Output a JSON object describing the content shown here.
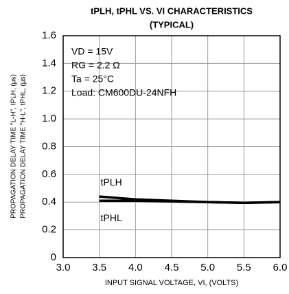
{
  "chart_data": {
    "type": "line",
    "title": "tPLH, tPHL VS. VI CHARACTERISTICS",
    "subtitle": "(TYPICAL)",
    "xlabel": "INPUT SIGNAL VOLTAGE, VI, (VOLTS)",
    "ylabel": [
      "PROPAGATION DELAY TIME \"L-H\", tPLH, (μs)",
      "PROPAGATION DELAY TIME \"H-L\", tPHL, (μs)"
    ],
    "annotations": [
      "VD = 15V",
      "RG = 2.2 Ω",
      "Ta = 25°C",
      "Load: CM600DU-24NFH"
    ],
    "x": [
      3.5,
      4.0,
      4.5,
      5.0,
      5.5,
      6.0
    ],
    "series": [
      {
        "name": "tPLH",
        "color": "#000000",
        "values": [
          0.44,
          0.42,
          0.41,
          0.4,
          0.395,
          0.4
        ]
      },
      {
        "name": "tPHL",
        "color": "#000000",
        "values": [
          0.41,
          0.41,
          0.405,
          0.4,
          0.395,
          0.4
        ]
      }
    ],
    "xlim": [
      3,
      6
    ],
    "xticks": [
      {
        "value": 3,
        "label": "3.0"
      },
      {
        "value": 3.5,
        "label": "3.5"
      },
      {
        "value": 4,
        "label": "4.0"
      },
      {
        "value": 4.5,
        "label": "4.5"
      },
      {
        "value": 5,
        "label": "5.0"
      },
      {
        "value": 5.5,
        "label": "5.5"
      },
      {
        "value": 6,
        "label": "6.0"
      }
    ],
    "ylim": [
      0,
      1.6
    ],
    "yticks": [
      0,
      0.2,
      0.4,
      0.6,
      0.8,
      {
        "value": 1,
        "label": "1.0"
      },
      1.2,
      1.4,
      1.6
    ],
    "grid": true
  }
}
